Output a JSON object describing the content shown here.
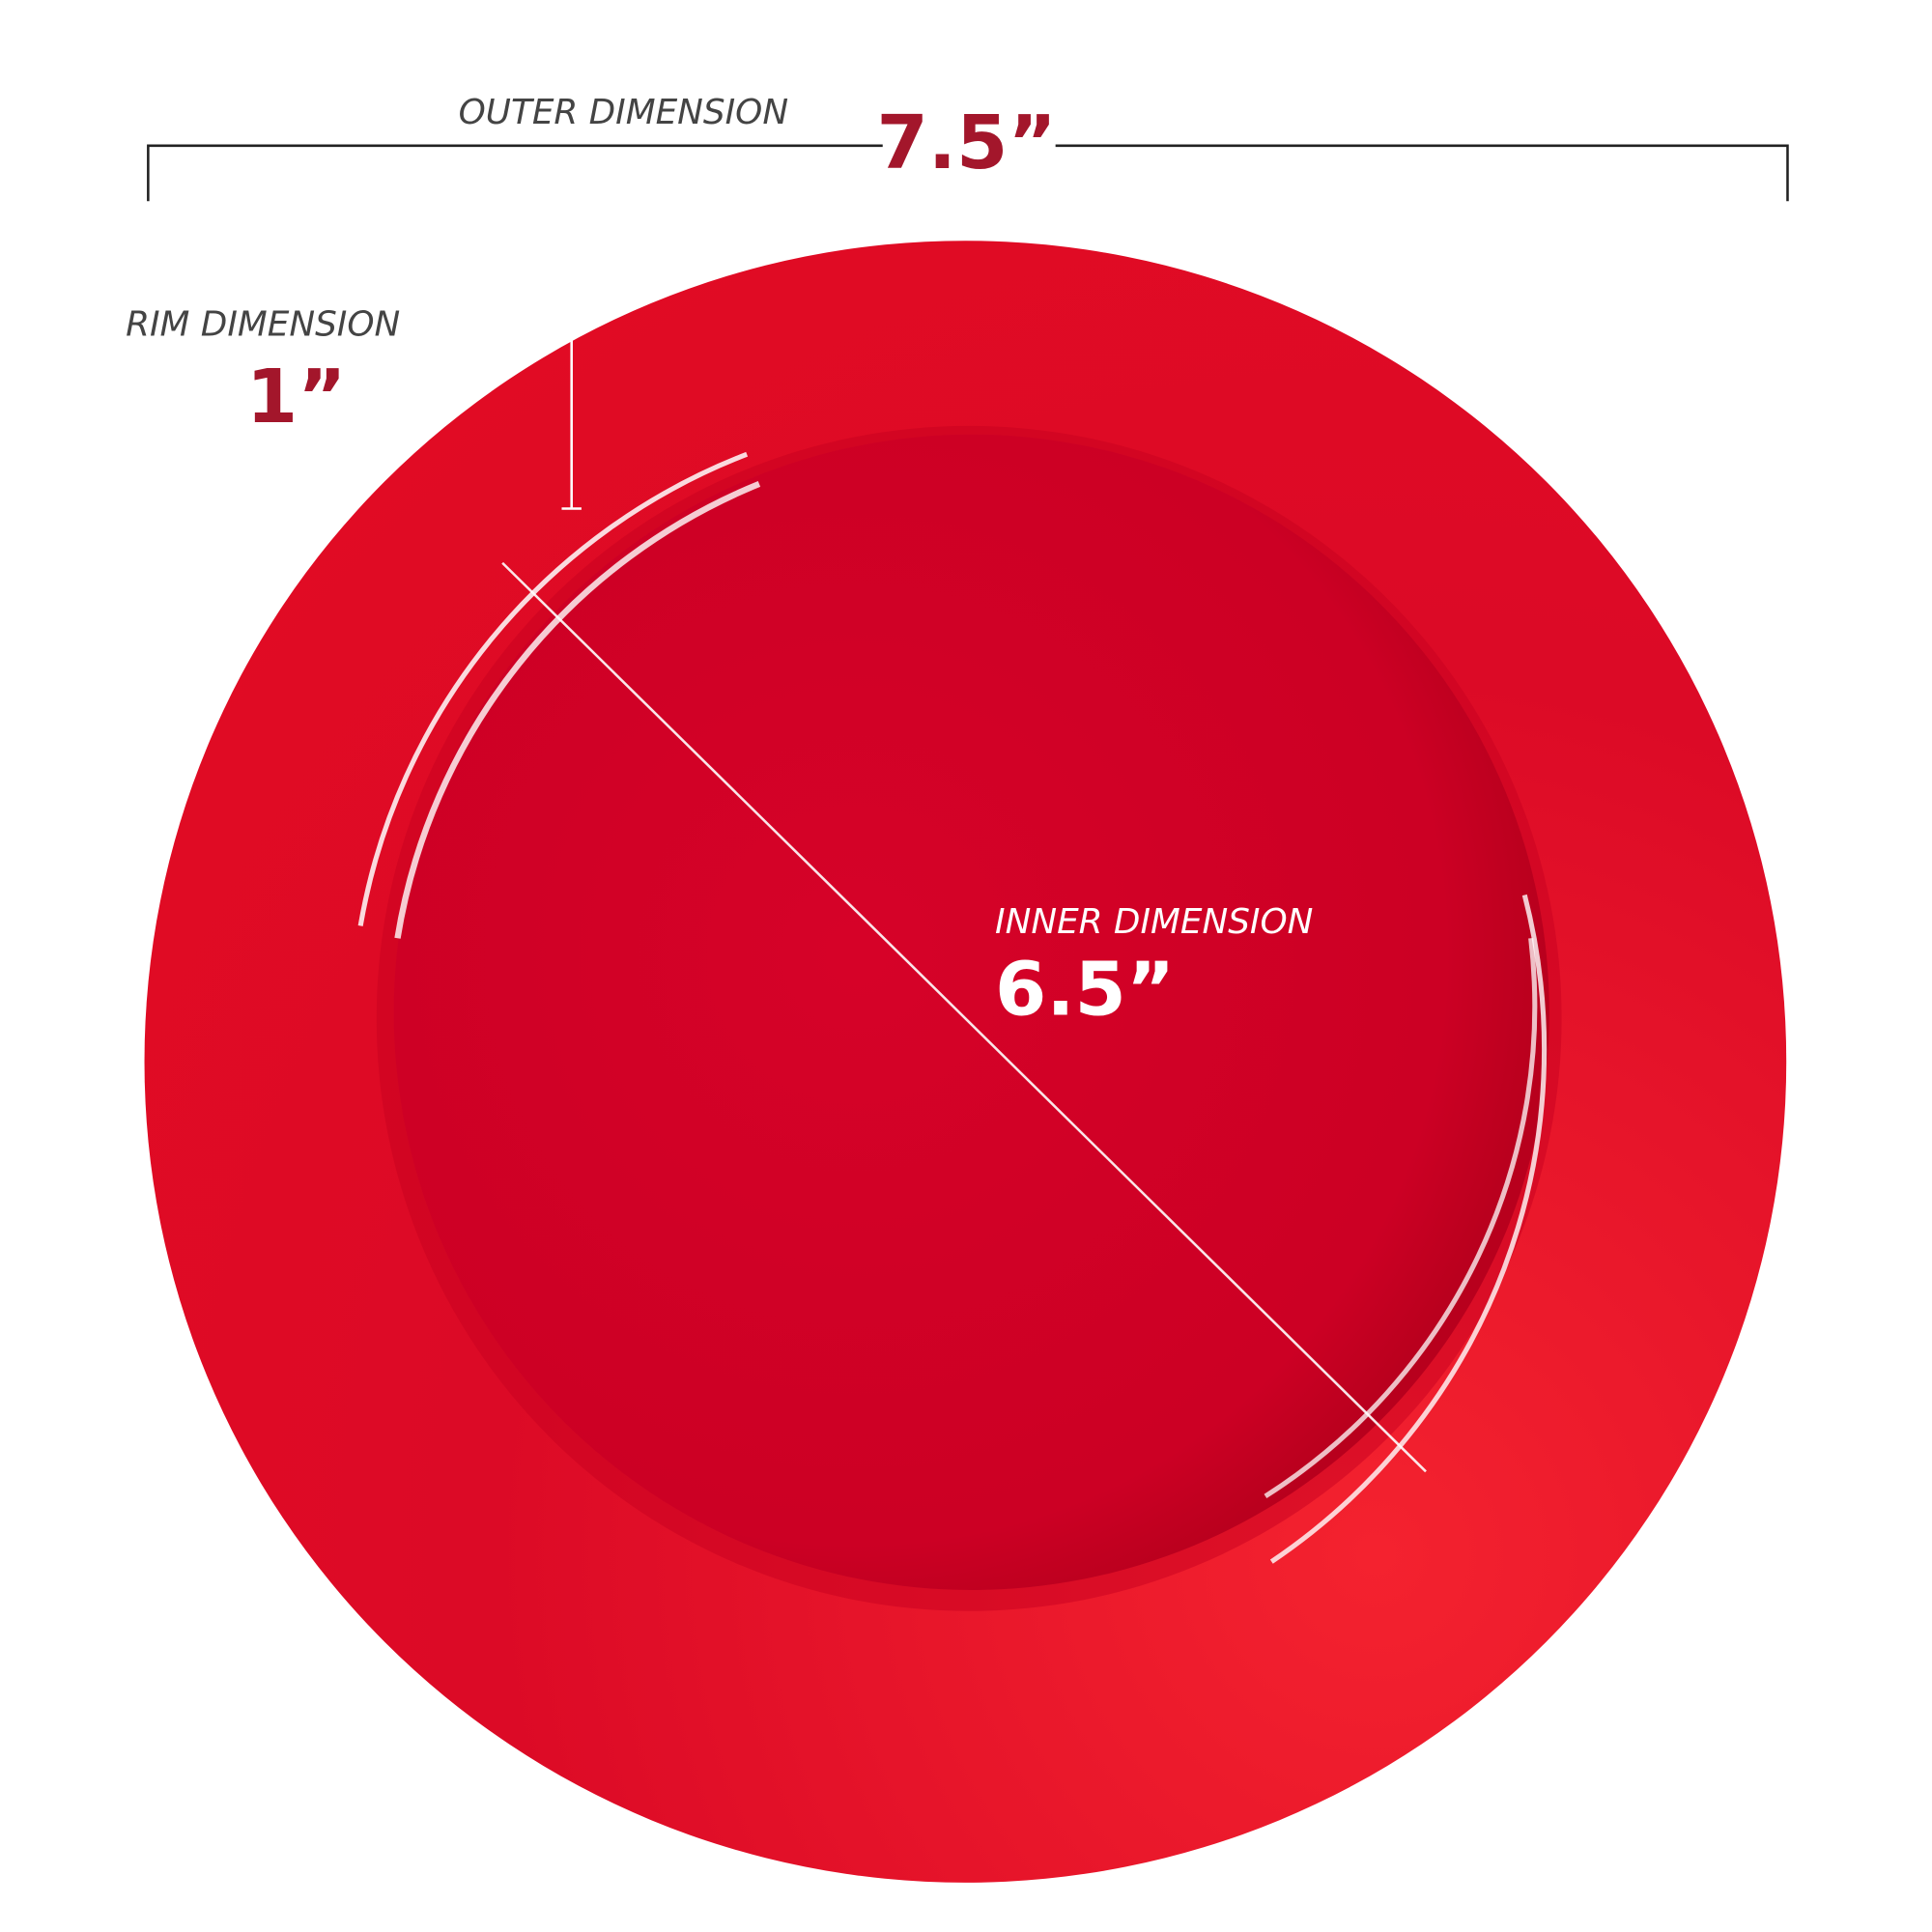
{
  "outer": {
    "label": "OUTER DIMENSION",
    "value": "7.5”"
  },
  "rim": {
    "label": "RIM DIMENSION",
    "value": "1”"
  },
  "inner": {
    "label": "INNER DIMENSION",
    "value": "6.5”"
  }
}
